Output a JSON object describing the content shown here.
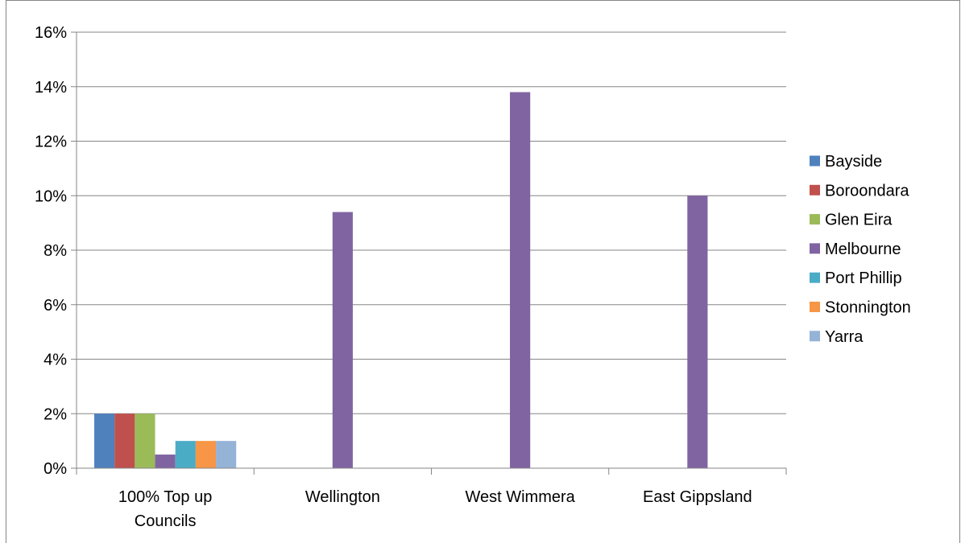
{
  "chart_data": {
    "type": "bar",
    "categories": [
      [
        "100% Top up",
        "Councils"
      ],
      [
        "Wellington"
      ],
      [
        "West Wimmera"
      ],
      [
        "East Gippsland"
      ]
    ],
    "ylim": [
      0,
      16
    ],
    "ytick_step": 2,
    "ytick_format": "{v}%",
    "grid": true,
    "legend_position": "right",
    "series": [
      {
        "name": "Bayside",
        "color": "#4f81bd",
        "values": [
          2,
          null,
          null,
          null
        ]
      },
      {
        "name": "Boroondara",
        "color": "#c0504d",
        "values": [
          2,
          null,
          null,
          null
        ]
      },
      {
        "name": "Glen Eira",
        "color": "#9bbb59",
        "values": [
          2,
          null,
          null,
          null
        ]
      },
      {
        "name": "Melbourne",
        "color": "#8064a2",
        "values": [
          0.5,
          9.4,
          13.8,
          10
        ]
      },
      {
        "name": "Port Phillip",
        "color": "#4bacc6",
        "values": [
          1,
          null,
          null,
          null
        ]
      },
      {
        "name": "Stonnington",
        "color": "#f79646",
        "values": [
          1,
          null,
          null,
          null
        ]
      },
      {
        "name": "Yarra",
        "color": "#95b3d7",
        "values": [
          1,
          null,
          null,
          null
        ]
      }
    ],
    "grid_color": "#868686",
    "axis_color": "#868686",
    "border_color": "#868686"
  }
}
